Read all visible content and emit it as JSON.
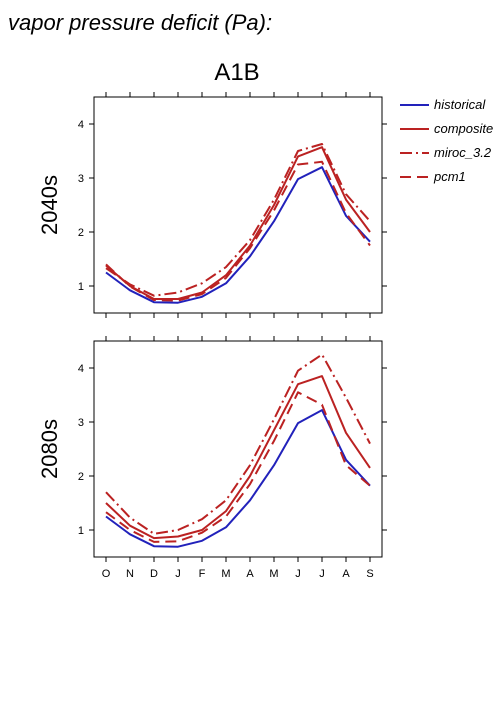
{
  "figure": {
    "title": "vapor pressure deficit (Pa):",
    "scenario": "A1B"
  },
  "legend": [
    {
      "name": "historical",
      "color": "#2222bb",
      "dash": "solid"
    },
    {
      "name": "composite",
      "color": "#bb2222",
      "dash": "solid"
    },
    {
      "name": "miroc_3.2",
      "color": "#bb2222",
      "dash": "dashdot"
    },
    {
      "name": "pcm1",
      "color": "#bb2222",
      "dash": "dash"
    }
  ],
  "chart_data": [
    {
      "type": "line",
      "row_label": "2040s",
      "categories": [
        "O",
        "N",
        "D",
        "J",
        "F",
        "M",
        "A",
        "M",
        "J",
        "J",
        "A",
        "S"
      ],
      "ylim": [
        0.5,
        4.5
      ],
      "yticks": [
        1,
        2,
        3,
        4
      ],
      "series": [
        {
          "name": "historical",
          "values": [
            1.25,
            0.92,
            0.7,
            0.69,
            0.8,
            1.05,
            1.55,
            2.2,
            2.98,
            3.2,
            2.3,
            1.82
          ]
        },
        {
          "name": "composite",
          "values": [
            1.38,
            1.0,
            0.76,
            0.76,
            0.88,
            1.2,
            1.75,
            2.5,
            3.4,
            3.57,
            2.6,
            2.0
          ]
        },
        {
          "name": "miroc_3.2",
          "values": [
            1.33,
            1.03,
            0.82,
            0.88,
            1.05,
            1.35,
            1.85,
            2.6,
            3.5,
            3.63,
            2.7,
            2.2
          ]
        },
        {
          "name": "pcm1",
          "values": [
            1.4,
            0.99,
            0.74,
            0.73,
            0.85,
            1.15,
            1.7,
            2.4,
            3.25,
            3.3,
            2.35,
            1.75
          ]
        }
      ]
    },
    {
      "type": "line",
      "row_label": "2080s",
      "categories": [
        "O",
        "N",
        "D",
        "J",
        "F",
        "M",
        "A",
        "M",
        "J",
        "J",
        "A",
        "S"
      ],
      "ylim": [
        0.5,
        4.5
      ],
      "yticks": [
        1,
        2,
        3,
        4
      ],
      "series": [
        {
          "name": "historical",
          "values": [
            1.25,
            0.92,
            0.7,
            0.69,
            0.8,
            1.05,
            1.55,
            2.2,
            2.98,
            3.22,
            2.3,
            1.82
          ]
        },
        {
          "name": "composite",
          "values": [
            1.5,
            1.08,
            0.85,
            0.88,
            1.0,
            1.35,
            2.0,
            2.85,
            3.7,
            3.85,
            2.8,
            2.15
          ]
        },
        {
          "name": "miroc_3.2",
          "values": [
            1.7,
            1.23,
            0.93,
            1.0,
            1.2,
            1.55,
            2.2,
            3.05,
            3.95,
            4.25,
            3.45,
            2.6
          ]
        },
        {
          "name": "pcm1",
          "values": [
            1.33,
            1.0,
            0.78,
            0.79,
            0.95,
            1.25,
            1.85,
            2.65,
            3.55,
            3.32,
            2.2,
            1.82
          ]
        }
      ]
    }
  ]
}
